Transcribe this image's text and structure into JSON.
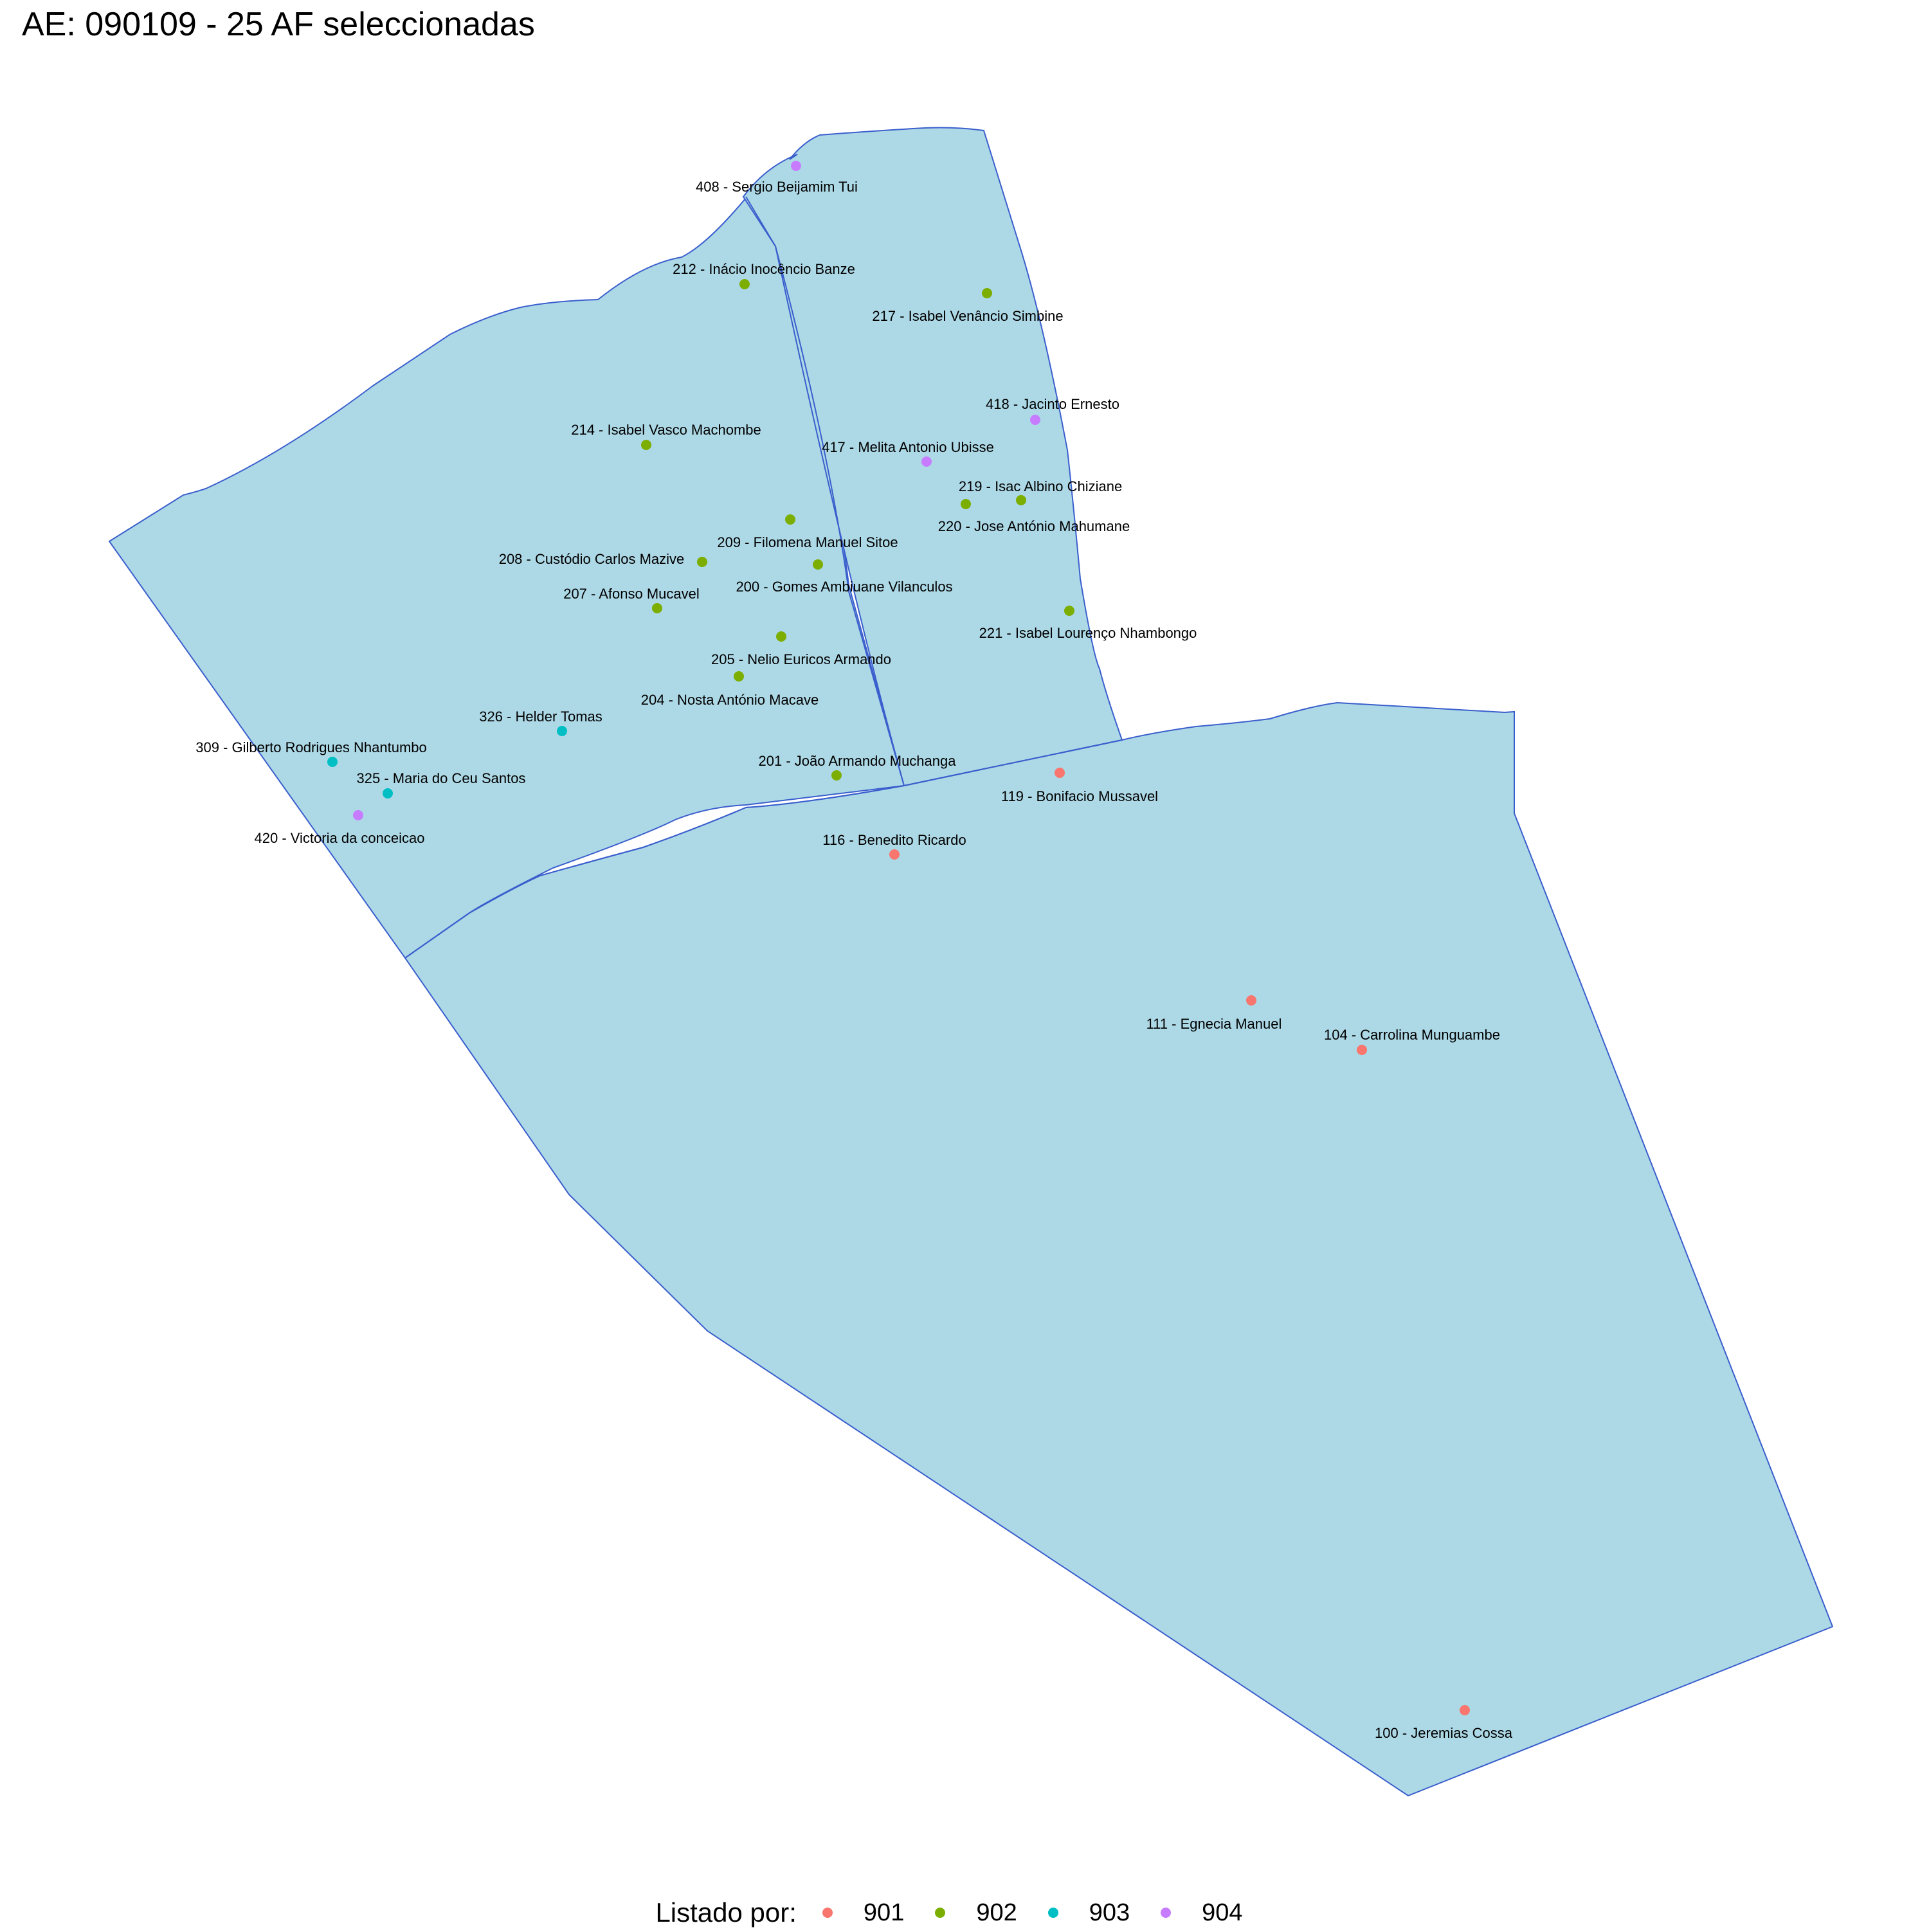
{
  "title": "AE: 090109 - 25  AF seleccionadas",
  "legend": {
    "title": "Listado por:",
    "items": [
      {
        "label": "901",
        "color": "#f8766d"
      },
      {
        "label": "902",
        "color": "#7cae00"
      },
      {
        "label": "903",
        "color": "#00bfc4"
      },
      {
        "label": "904",
        "color": "#c77cff"
      }
    ]
  },
  "map": {
    "fill_color": "#add8e6",
    "stroke_color": "#3a5fcd"
  },
  "points": [
    {
      "label": "408 - Sergio Beijamim Tui",
      "group": "904"
    },
    {
      "label": "212 - Inácio Inocêncio Banze",
      "group": "902"
    },
    {
      "label": "217 - Isabel Venâncio Simbine",
      "group": "902"
    },
    {
      "label": "418 - Jacinto Ernesto",
      "group": "904"
    },
    {
      "label": "214 - Isabel Vasco Machombe",
      "group": "902"
    },
    {
      "label": "417 - Melita Antonio Ubisse",
      "group": "904"
    },
    {
      "label": "219 - Isac Albino Chiziane",
      "group": "902"
    },
    {
      "label": "220 - Jose António Mahumane",
      "group": "902"
    },
    {
      "label": "209 - Filomena Manuel Sitoe",
      "group": "902"
    },
    {
      "label": "208 - Custódio Carlos Mazive",
      "group": "902"
    },
    {
      "label": "200 - Gomes Ambiuane Vilanculos",
      "group": "902"
    },
    {
      "label": "207 - Afonso Mucavel",
      "group": "902"
    },
    {
      "label": "221 - Isabel  Lourenço Nhambongo",
      "group": "902"
    },
    {
      "label": "205 - Nelio Euricos Armando",
      "group": "902"
    },
    {
      "label": "204 - Nosta António Macave",
      "group": "902"
    },
    {
      "label": "326 - Helder Tomas",
      "group": "903"
    },
    {
      "label": "309 - Gilberto Rodrigues Nhantumbo",
      "group": "903"
    },
    {
      "label": "201 - João Armando Muchanga",
      "group": "902"
    },
    {
      "label": "325 - Maria do  Ceu Santos",
      "group": "903"
    },
    {
      "label": "119 - Bonifacio Mussavel",
      "group": "901"
    },
    {
      "label": "420 - Victoria da conceicao",
      "group": "904"
    },
    {
      "label": "116 - Benedito Ricardo",
      "group": "901"
    },
    {
      "label": "111 - Egnecia Manuel",
      "group": "901"
    },
    {
      "label": "104 - Carrolina  Munguambe",
      "group": "901"
    },
    {
      "label": "100 - Jeremias Cossa",
      "group": "901"
    }
  ]
}
